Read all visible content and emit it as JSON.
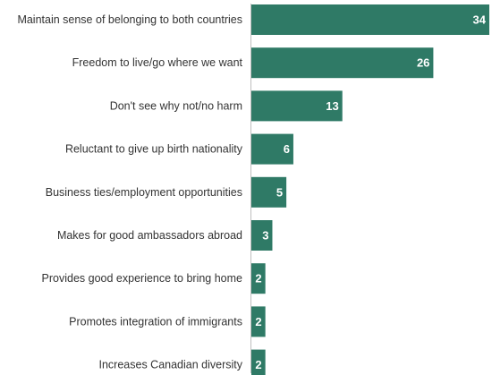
{
  "chart_data": {
    "type": "bar",
    "orientation": "horizontal",
    "categories": [
      "Maintain sense of belonging to both countries",
      "Freedom to live/go where we want",
      "Don't see why not/no harm",
      "Reluctant to give up birth nationality",
      "Business ties/employment opportunities",
      "Makes for good ambassadors abroad",
      "Provides good experience to bring home",
      "Promotes integration of immigrants",
      "Increases Canadian diversity"
    ],
    "values": [
      34,
      26,
      13,
      6,
      5,
      3,
      2,
      2,
      2
    ],
    "value_labels": [
      "34",
      "26",
      "13",
      "6",
      "5",
      "3",
      "2",
      "2",
      "2"
    ],
    "title": "",
    "xlabel": "",
    "ylabel": "",
    "xlim": [
      0,
      34
    ],
    "grid": false,
    "legend": "none",
    "bar_color": "#2f7a66",
    "label_color": "#333333",
    "value_label_color": "#ffffff"
  }
}
